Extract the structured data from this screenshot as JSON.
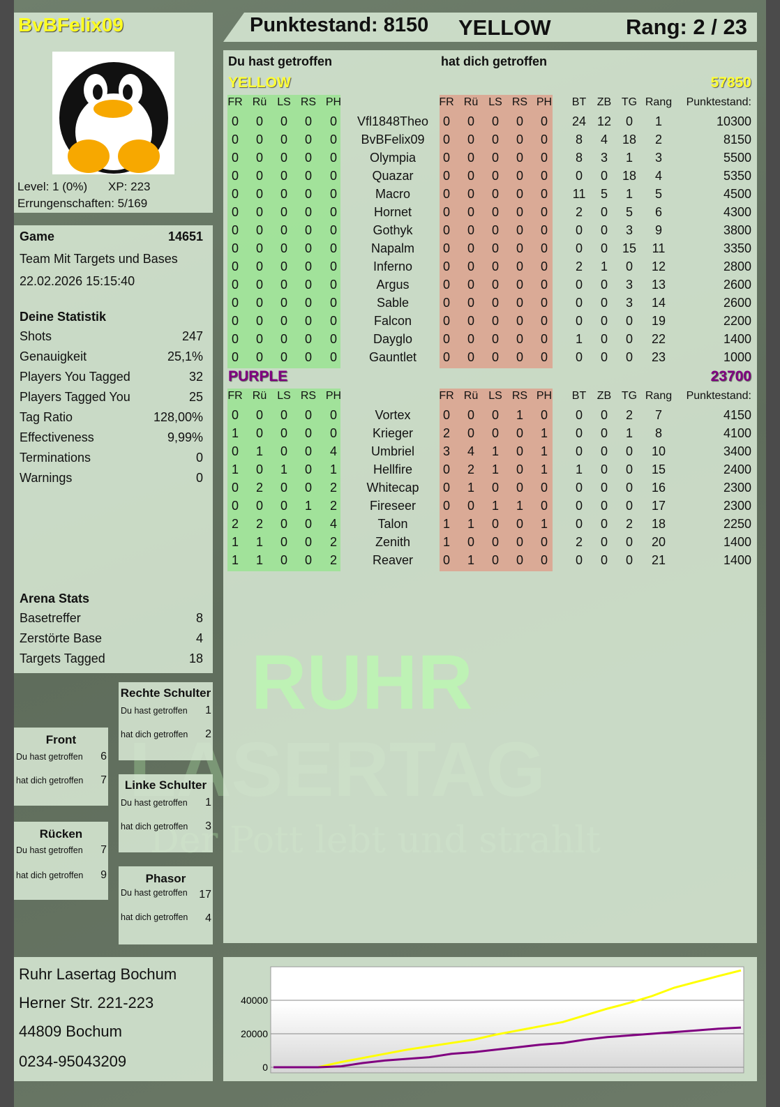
{
  "player": {
    "name": "BvBFelix09",
    "level": "Level: 1 (0%)",
    "xp": "XP: 223",
    "achievements": "Errungenschaften: 5/169",
    "avatar_icon": "penguin-icon"
  },
  "header": {
    "score": "Punktestand: 8150",
    "team": "YELLOW",
    "rank": "Rang: 2 / 23"
  },
  "hits": {
    "you_hit": "Du hast getroffen",
    "hit_you": "hat dich getroffen"
  },
  "columns": {
    "hit": [
      "FR",
      "Rü",
      "LS",
      "RS",
      "PH"
    ],
    "stats": [
      "BT",
      "ZB",
      "TG",
      "Rang"
    ],
    "points": "Punktestand:"
  },
  "teams": [
    {
      "name": "YELLOW",
      "total": "57850",
      "color": "#ffff33",
      "players": [
        {
          "you": [
            0,
            0,
            0,
            0,
            0
          ],
          "name": "Vfl1848Theo",
          "them": [
            0,
            0,
            0,
            0,
            0
          ],
          "stats": [
            24,
            12,
            0,
            1
          ],
          "points": 10300
        },
        {
          "you": [
            0,
            0,
            0,
            0,
            0
          ],
          "name": "BvBFelix09",
          "them": [
            0,
            0,
            0,
            0,
            0
          ],
          "stats": [
            8,
            4,
            18,
            2
          ],
          "points": 8150
        },
        {
          "you": [
            0,
            0,
            0,
            0,
            0
          ],
          "name": "Olympia",
          "them": [
            0,
            0,
            0,
            0,
            0
          ],
          "stats": [
            8,
            3,
            1,
            3
          ],
          "points": 5500
        },
        {
          "you": [
            0,
            0,
            0,
            0,
            0
          ],
          "name": "Quazar",
          "them": [
            0,
            0,
            0,
            0,
            0
          ],
          "stats": [
            0,
            0,
            18,
            4
          ],
          "points": 5350
        },
        {
          "you": [
            0,
            0,
            0,
            0,
            0
          ],
          "name": "Macro",
          "them": [
            0,
            0,
            0,
            0,
            0
          ],
          "stats": [
            11,
            5,
            1,
            5
          ],
          "points": 4500
        },
        {
          "you": [
            0,
            0,
            0,
            0,
            0
          ],
          "name": "Hornet",
          "them": [
            0,
            0,
            0,
            0,
            0
          ],
          "stats": [
            2,
            0,
            5,
            6
          ],
          "points": 4300
        },
        {
          "you": [
            0,
            0,
            0,
            0,
            0
          ],
          "name": "Gothyk",
          "them": [
            0,
            0,
            0,
            0,
            0
          ],
          "stats": [
            0,
            0,
            3,
            9
          ],
          "points": 3800
        },
        {
          "you": [
            0,
            0,
            0,
            0,
            0
          ],
          "name": "Napalm",
          "them": [
            0,
            0,
            0,
            0,
            0
          ],
          "stats": [
            0,
            0,
            15,
            11
          ],
          "points": 3350
        },
        {
          "you": [
            0,
            0,
            0,
            0,
            0
          ],
          "name": "Inferno",
          "them": [
            0,
            0,
            0,
            0,
            0
          ],
          "stats": [
            2,
            1,
            0,
            12
          ],
          "points": 2800
        },
        {
          "you": [
            0,
            0,
            0,
            0,
            0
          ],
          "name": "Argus",
          "them": [
            0,
            0,
            0,
            0,
            0
          ],
          "stats": [
            0,
            0,
            3,
            13
          ],
          "points": 2600
        },
        {
          "you": [
            0,
            0,
            0,
            0,
            0
          ],
          "name": "Sable",
          "them": [
            0,
            0,
            0,
            0,
            0
          ],
          "stats": [
            0,
            0,
            3,
            14
          ],
          "points": 2600
        },
        {
          "you": [
            0,
            0,
            0,
            0,
            0
          ],
          "name": "Falcon",
          "them": [
            0,
            0,
            0,
            0,
            0
          ],
          "stats": [
            0,
            0,
            0,
            19
          ],
          "points": 2200
        },
        {
          "you": [
            0,
            0,
            0,
            0,
            0
          ],
          "name": "Dayglo",
          "them": [
            0,
            0,
            0,
            0,
            0
          ],
          "stats": [
            1,
            0,
            0,
            22
          ],
          "points": 1400
        },
        {
          "you": [
            0,
            0,
            0,
            0,
            0
          ],
          "name": "Gauntlet",
          "them": [
            0,
            0,
            0,
            0,
            0
          ],
          "stats": [
            0,
            0,
            0,
            23
          ],
          "points": 1000
        }
      ]
    },
    {
      "name": "PURPLE",
      "total": "23700",
      "color": "#800080",
      "players": [
        {
          "you": [
            0,
            0,
            0,
            0,
            0
          ],
          "name": "Vortex",
          "them": [
            0,
            0,
            0,
            1,
            0
          ],
          "stats": [
            0,
            0,
            2,
            7
          ],
          "points": 4150
        },
        {
          "you": [
            1,
            0,
            0,
            0,
            0
          ],
          "name": "Krieger",
          "them": [
            2,
            0,
            0,
            0,
            1
          ],
          "stats": [
            0,
            0,
            1,
            8
          ],
          "points": 4100
        },
        {
          "you": [
            0,
            1,
            0,
            0,
            4
          ],
          "name": "Umbriel",
          "them": [
            3,
            4,
            1,
            0,
            1
          ],
          "stats": [
            0,
            0,
            0,
            10
          ],
          "points": 3400
        },
        {
          "you": [
            1,
            0,
            1,
            0,
            1
          ],
          "name": "Hellfire",
          "them": [
            0,
            2,
            1,
            0,
            1
          ],
          "stats": [
            1,
            0,
            0,
            15
          ],
          "points": 2400
        },
        {
          "you": [
            0,
            2,
            0,
            0,
            2
          ],
          "name": "Whitecap",
          "them": [
            0,
            1,
            0,
            0,
            0
          ],
          "stats": [
            0,
            0,
            0,
            16
          ],
          "points": 2300
        },
        {
          "you": [
            0,
            0,
            0,
            1,
            2
          ],
          "name": "Fireseer",
          "them": [
            0,
            0,
            1,
            1,
            0
          ],
          "stats": [
            0,
            0,
            0,
            17
          ],
          "points": 2300
        },
        {
          "you": [
            2,
            2,
            0,
            0,
            4
          ],
          "name": "Talon",
          "them": [
            1,
            1,
            0,
            0,
            1
          ],
          "stats": [
            0,
            0,
            2,
            18
          ],
          "points": 2250
        },
        {
          "you": [
            1,
            1,
            0,
            0,
            2
          ],
          "name": "Zenith",
          "them": [
            1,
            0,
            0,
            0,
            0
          ],
          "stats": [
            2,
            0,
            0,
            20
          ],
          "points": 1400
        },
        {
          "you": [
            1,
            1,
            0,
            0,
            2
          ],
          "name": "Reaver",
          "them": [
            0,
            1,
            0,
            0,
            0
          ],
          "stats": [
            0,
            0,
            0,
            21
          ],
          "points": 1400
        }
      ]
    }
  ],
  "game": {
    "label": "Game",
    "id": "14651",
    "mode": "Team Mit Targets und Bases",
    "datetime": "22.02.2026 15:15:40"
  },
  "my_stats": {
    "title": "Deine Statistik",
    "rows": [
      {
        "label": "Shots",
        "value": "247"
      },
      {
        "label": "Genauigkeit",
        "value": "25,1%"
      },
      {
        "label": "Players You Tagged",
        "value": "32"
      },
      {
        "label": "Players Tagged You",
        "value": "25"
      },
      {
        "label": "Tag Ratio",
        "value": "128,00%"
      },
      {
        "label": "Effectiveness",
        "value": "9,99%"
      },
      {
        "label": "Terminations",
        "value": "0"
      },
      {
        "label": "Warnings",
        "value": "0"
      }
    ]
  },
  "arena_stats": {
    "title": "Arena Stats",
    "rows": [
      {
        "label": "Basetreffer",
        "value": "8"
      },
      {
        "label": "Zerstörte Base",
        "value": "4"
      },
      {
        "label": "Targets Tagged",
        "value": "18"
      }
    ]
  },
  "body_parts": {
    "rechte_schulter": {
      "title": "Rechte Schulter",
      "you": "1",
      "them": "2"
    },
    "front": {
      "title": "Front",
      "you": "6",
      "them": "7"
    },
    "linke_schulter": {
      "title": "Linke Schulter",
      "you": "1",
      "them": "3"
    },
    "ruecken": {
      "title": "Rücken",
      "you": "7",
      "them": "9"
    },
    "phasor": {
      "title": "Phasor",
      "you": "17",
      "them": "4"
    }
  },
  "address": {
    "name": "Ruhr Lasertag Bochum",
    "street": "Herner Str. 221-223",
    "city": "44809 Bochum",
    "phone": "0234-95043209"
  },
  "watermark": {
    "line1": "RUHR",
    "line2": "LASERTAG",
    "slogan": "Der Pott lebt und strahlt"
  },
  "chart_data": {
    "type": "line",
    "ylim": [
      0,
      60000
    ],
    "yticks": [
      "0",
      "20000",
      "40000"
    ],
    "grid": true,
    "series": [
      {
        "color": "#ffff00",
        "values": [
          0,
          0,
          0,
          3000,
          5500,
          8000,
          10500,
          12500,
          14500,
          16500,
          19500,
          22000,
          24500,
          27000,
          31000,
          35000,
          38500,
          42500,
          47500,
          51000,
          54500,
          57850
        ]
      },
      {
        "color": "#800080",
        "values": [
          0,
          0,
          0,
          500,
          2500,
          4000,
          5000,
          6000,
          8000,
          9000,
          10500,
          12000,
          13500,
          14500,
          16500,
          18000,
          19000,
          20000,
          21000,
          22000,
          23000,
          23700
        ]
      }
    ]
  }
}
